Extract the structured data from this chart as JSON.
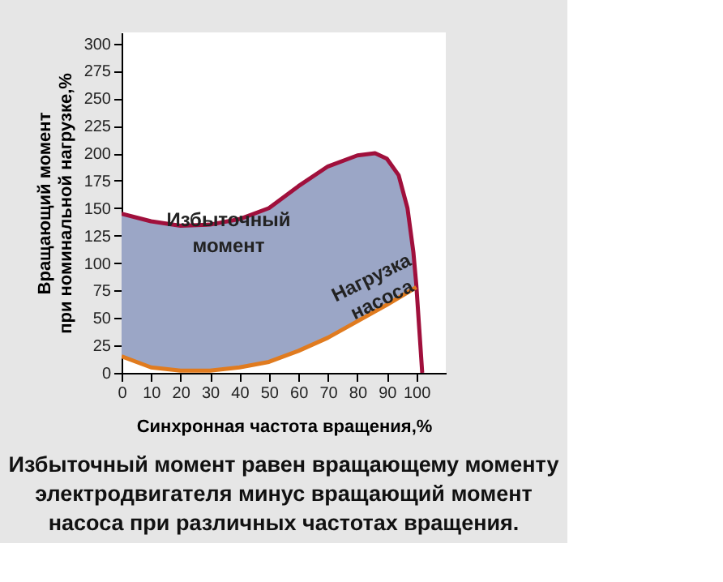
{
  "chart_data": {
    "type": "line",
    "xlabel": "Синхронная частота вращения,%",
    "ylabel": "Вращающий момент\nпри номинальной нагрузке,%",
    "xlim": [
      0,
      110
    ],
    "xticks": [
      0,
      10,
      20,
      30,
      40,
      50,
      60,
      70,
      80,
      90,
      100
    ],
    "ylim": [
      0,
      310
    ],
    "yticks": [
      0,
      25,
      50,
      75,
      100,
      125,
      150,
      175,
      200,
      225,
      250,
      275,
      300
    ],
    "grid": false,
    "series": [
      {
        "color": "#a0103c",
        "x": [
          0,
          10,
          20,
          30,
          40,
          50,
          55,
          60,
          70,
          80,
          86,
          90,
          94,
          97,
          99,
          100,
          101,
          102
        ],
        "values": [
          145,
          138,
          134,
          135,
          140,
          150,
          160,
          170,
          188,
          198,
          200,
          195,
          180,
          150,
          110,
          80,
          40,
          0
        ],
        "upper": [
          145,
          138,
          134,
          135,
          140,
          150,
          160,
          170,
          188,
          198,
          200,
          195,
          180,
          150,
          110,
          80,
          null,
          null
        ],
        "lower": [
          15,
          5,
          2,
          2,
          5,
          10,
          15,
          20,
          32,
          47,
          55,
          62,
          70,
          74,
          77,
          78,
          null,
          null
        ]
      },
      {
        "color": "#e07b1f",
        "x": [
          0,
          10,
          20,
          30,
          40,
          50,
          60,
          70,
          80,
          90,
          100
        ],
        "values": [
          15,
          5,
          2,
          2,
          5,
          10,
          20,
          32,
          47,
          62,
          78
        ]
      }
    ],
    "annotations": [
      "Избыточный\nмомент",
      "Нагрузка\nнасоса",
      "Избыточный момент равен вращающему моменту электродвигателя минус вращающий момент насоса при различных частотах вращения."
    ]
  }
}
